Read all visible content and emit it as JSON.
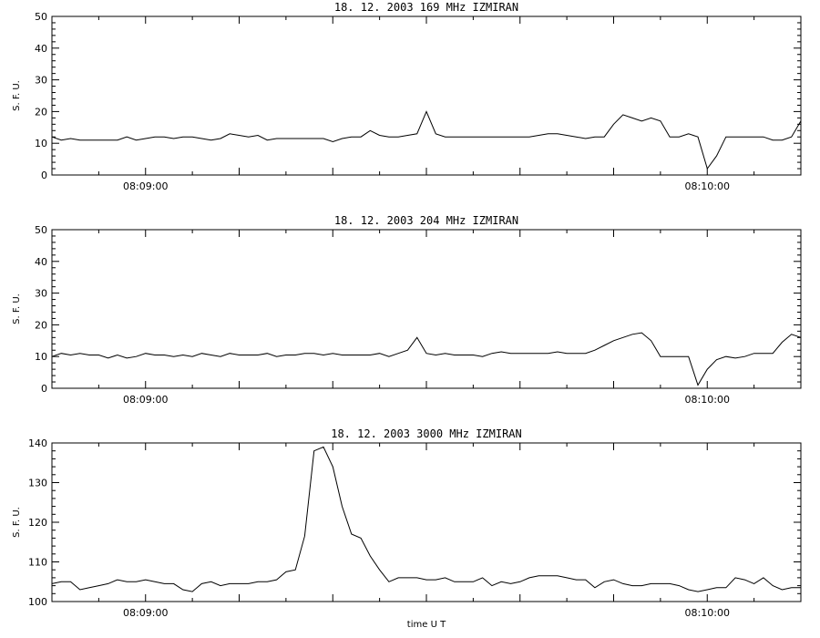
{
  "chart_data": [
    {
      "type": "line",
      "title": "18.  12.  2003    169 MHz    IZMIRAN",
      "ylabel": "S. F. U.",
      "xlabel": "",
      "xlim": [
        0,
        80
      ],
      "ylim": [
        0,
        50
      ],
      "yticks": [
        0,
        10,
        20,
        30,
        40,
        50
      ],
      "xtick_labels": [
        {
          "x": 10,
          "label": "08:09:00"
        },
        {
          "x": 70,
          "label": "08:10:00"
        }
      ],
      "x": [
        0,
        1,
        2,
        3,
        4,
        5,
        6,
        7,
        8,
        9,
        10,
        11,
        12,
        13,
        14,
        15,
        16,
        17,
        18,
        19,
        20,
        21,
        22,
        23,
        24,
        25,
        26,
        27,
        28,
        29,
        30,
        31,
        32,
        33,
        34,
        35,
        36,
        37,
        38,
        39,
        40,
        41,
        42,
        43,
        44,
        45,
        46,
        47,
        48,
        49,
        50,
        51,
        52,
        53,
        54,
        55,
        56,
        57,
        58,
        59,
        60,
        61,
        62,
        63,
        64,
        65,
        66,
        67,
        68,
        69,
        70,
        71,
        72,
        73,
        74,
        75,
        76,
        77,
        78,
        79,
        80
      ],
      "series": [
        {
          "values": [
            12,
            11,
            11.5,
            11,
            11,
            11,
            11,
            11,
            12,
            11,
            11.5,
            12,
            12,
            11.5,
            12,
            12,
            11.5,
            11,
            11.5,
            13,
            12.5,
            12,
            12.5,
            11,
            11.5,
            11.5,
            11.5,
            11.5,
            11.5,
            11.5,
            10.5,
            11.5,
            12,
            12,
            14,
            12.5,
            12,
            12,
            12.5,
            13,
            20,
            13,
            12,
            12,
            12,
            12,
            12,
            12,
            12,
            12,
            12,
            12,
            12.5,
            13,
            13,
            12.5,
            12,
            11.5,
            12,
            12,
            16,
            19,
            18,
            17,
            18,
            17,
            12,
            12,
            13,
            12,
            2,
            6,
            12,
            12,
            12,
            12,
            12,
            11,
            11,
            12,
            17
          ]
        }
      ]
    },
    {
      "type": "line",
      "title": "18.  12.  2003    204 MHz    IZMIRAN",
      "ylabel": "S. F. U.",
      "xlabel": "",
      "xlim": [
        0,
        80
      ],
      "ylim": [
        0,
        50
      ],
      "yticks": [
        0,
        10,
        20,
        30,
        40,
        50
      ],
      "xtick_labels": [
        {
          "x": 10,
          "label": "08:09:00"
        },
        {
          "x": 70,
          "label": "08:10:00"
        }
      ],
      "x": [
        0,
        1,
        2,
        3,
        4,
        5,
        6,
        7,
        8,
        9,
        10,
        11,
        12,
        13,
        14,
        15,
        16,
        17,
        18,
        19,
        20,
        21,
        22,
        23,
        24,
        25,
        26,
        27,
        28,
        29,
        30,
        31,
        32,
        33,
        34,
        35,
        36,
        37,
        38,
        39,
        40,
        41,
        42,
        43,
        44,
        45,
        46,
        47,
        48,
        49,
        50,
        51,
        52,
        53,
        54,
        55,
        56,
        57,
        58,
        59,
        60,
        61,
        62,
        63,
        64,
        65,
        66,
        67,
        68,
        69,
        70,
        71,
        72,
        73,
        74,
        75,
        76,
        77,
        78,
        79,
        80
      ],
      "series": [
        {
          "values": [
            10,
            11,
            10.5,
            11,
            10.5,
            10.5,
            9.5,
            10.5,
            9.5,
            10,
            11,
            10.5,
            10.5,
            10,
            10.5,
            10,
            11,
            10.5,
            10,
            11,
            10.5,
            10.5,
            10.5,
            11,
            10,
            10.5,
            10.5,
            11,
            11,
            10.5,
            11,
            10.5,
            10.5,
            10.5,
            10.5,
            11,
            10,
            11,
            12,
            16,
            11,
            10.5,
            11,
            10.5,
            10.5,
            10.5,
            10,
            11,
            11.5,
            11,
            11,
            11,
            11,
            11,
            11.5,
            11,
            11,
            11,
            12,
            13.5,
            15,
            16,
            17,
            17.5,
            15,
            10,
            10,
            10,
            10,
            1,
            6,
            9,
            10,
            9.5,
            10,
            11,
            11,
            11,
            14.5,
            17,
            16
          ]
        }
      ]
    },
    {
      "type": "line",
      "title": "18.  12.  2003    3000 MHz    IZMIRAN",
      "ylabel": "S. F. U.",
      "xlabel": "time  U T",
      "xlim": [
        0,
        80
      ],
      "ylim": [
        100,
        140
      ],
      "yticks": [
        100,
        110,
        120,
        130,
        140
      ],
      "xtick_labels": [
        {
          "x": 10,
          "label": "08:09:00"
        },
        {
          "x": 70,
          "label": "08:10:00"
        }
      ],
      "x": [
        0,
        1,
        2,
        3,
        4,
        5,
        6,
        7,
        8,
        9,
        10,
        11,
        12,
        13,
        14,
        15,
        16,
        17,
        18,
        19,
        20,
        21,
        22,
        23,
        24,
        25,
        26,
        27,
        28,
        29,
        30,
        31,
        32,
        33,
        34,
        35,
        36,
        37,
        38,
        39,
        40,
        41,
        42,
        43,
        44,
        45,
        46,
        47,
        48,
        49,
        50,
        51,
        52,
        53,
        54,
        55,
        56,
        57,
        58,
        59,
        60,
        61,
        62,
        63,
        64,
        65,
        66,
        67,
        68,
        69,
        70,
        71,
        72,
        73,
        74,
        75,
        76,
        77,
        78,
        79,
        80
      ],
      "series": [
        {
          "values": [
            104.5,
            105,
            105,
            103,
            103.5,
            104,
            104.5,
            105.5,
            105,
            105,
            105.5,
            105,
            104.5,
            104.5,
            103,
            102.5,
            104.5,
            105,
            104,
            104.5,
            104.5,
            104.5,
            105,
            105,
            105.5,
            107.5,
            108,
            116.5,
            138,
            139,
            134,
            124,
            117,
            116,
            111.5,
            108,
            105,
            106,
            106,
            106,
            105.5,
            105.5,
            106,
            105,
            105,
            105,
            106,
            104,
            105,
            104.5,
            105,
            106,
            106.5,
            106.5,
            106.5,
            106,
            105.5,
            105.5,
            103.5,
            105,
            105.5,
            104.5,
            104,
            104,
            104.5,
            104.5,
            104.5,
            104,
            103,
            102.5,
            103,
            103.5,
            103.5,
            106,
            105.5,
            104.5,
            106,
            104,
            103,
            103.5,
            103.5
          ]
        }
      ]
    }
  ]
}
